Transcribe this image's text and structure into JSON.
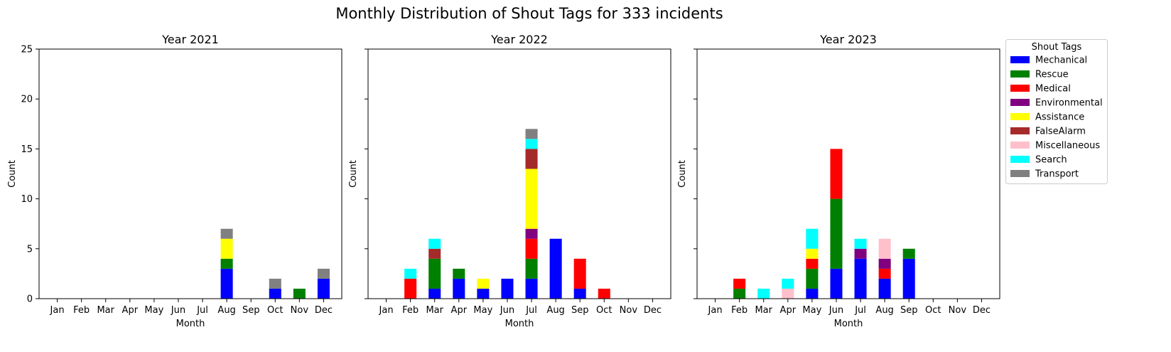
{
  "chart_data": {
    "type": "bar",
    "stacked": true,
    "title": "Monthly Distribution of Shout Tags for 333 incidents",
    "xlabel": "Month",
    "ylabel": "Count",
    "ylim": [
      0,
      25
    ],
    "yticks": [
      0,
      5,
      10,
      15,
      20,
      25
    ],
    "grid": false,
    "shared_y": true,
    "categories": [
      "Jan",
      "Feb",
      "Mar",
      "Apr",
      "May",
      "Jun",
      "Jul",
      "Aug",
      "Sep",
      "Oct",
      "Nov",
      "Dec"
    ],
    "legend": {
      "title": "Shout Tags",
      "placement": "outside-right-top",
      "entries": [
        {
          "name": "Mechanical",
          "color": "#0000ff"
        },
        {
          "name": "Rescue",
          "color": "#008000"
        },
        {
          "name": "Medical",
          "color": "#ff0000"
        },
        {
          "name": "Environmental",
          "color": "#800080"
        },
        {
          "name": "Assistance",
          "color": "#ffff00"
        },
        {
          "name": "FalseAlarm",
          "color": "#a52a2a"
        },
        {
          "name": "Miscellaneous",
          "color": "#ffc0cb"
        },
        {
          "name": "Search",
          "color": "#00ffff"
        },
        {
          "name": "Transport",
          "color": "#808080"
        }
      ]
    },
    "panels": [
      {
        "title": "Year 2021",
        "series": [
          {
            "name": "Mechanical",
            "values": [
              0,
              0,
              0,
              0,
              0,
              0,
              0,
              3,
              0,
              1,
              0,
              2
            ]
          },
          {
            "name": "Rescue",
            "values": [
              0,
              0,
              0,
              0,
              0,
              0,
              0,
              1,
              0,
              0,
              1,
              0
            ]
          },
          {
            "name": "Medical",
            "values": [
              0,
              0,
              0,
              0,
              0,
              0,
              0,
              0,
              0,
              0,
              0,
              0
            ]
          },
          {
            "name": "Environmental",
            "values": [
              0,
              0,
              0,
              0,
              0,
              0,
              0,
              0,
              0,
              0,
              0,
              0
            ]
          },
          {
            "name": "Assistance",
            "values": [
              0,
              0,
              0,
              0,
              0,
              0,
              0,
              2,
              0,
              0,
              0,
              0
            ]
          },
          {
            "name": "FalseAlarm",
            "values": [
              0,
              0,
              0,
              0,
              0,
              0,
              0,
              0,
              0,
              0,
              0,
              0
            ]
          },
          {
            "name": "Miscellaneous",
            "values": [
              0,
              0,
              0,
              0,
              0,
              0,
              0,
              0,
              0,
              0,
              0,
              0
            ]
          },
          {
            "name": "Search",
            "values": [
              0,
              0,
              0,
              0,
              0,
              0,
              0,
              0,
              0,
              0,
              0,
              0
            ]
          },
          {
            "name": "Transport",
            "values": [
              0,
              0,
              0,
              0,
              0,
              0,
              0,
              1,
              0,
              1,
              0,
              1
            ]
          }
        ]
      },
      {
        "title": "Year 2022",
        "series": [
          {
            "name": "Mechanical",
            "values": [
              0,
              0,
              1,
              2,
              1,
              2,
              2,
              6,
              1,
              0,
              0,
              0
            ]
          },
          {
            "name": "Rescue",
            "values": [
              0,
              0,
              3,
              1,
              0,
              0,
              2,
              0,
              0,
              0,
              0,
              0
            ]
          },
          {
            "name": "Medical",
            "values": [
              0,
              2,
              0,
              0,
              0,
              0,
              2,
              0,
              3,
              1,
              0,
              0
            ]
          },
          {
            "name": "Environmental",
            "values": [
              0,
              0,
              0,
              0,
              0,
              0,
              1,
              0,
              0,
              0,
              0,
              0
            ]
          },
          {
            "name": "Assistance",
            "values": [
              0,
              0,
              0,
              0,
              1,
              0,
              6,
              0,
              0,
              0,
              0,
              0
            ]
          },
          {
            "name": "FalseAlarm",
            "values": [
              0,
              0,
              1,
              0,
              0,
              0,
              2,
              0,
              0,
              0,
              0,
              0
            ]
          },
          {
            "name": "Miscellaneous",
            "values": [
              0,
              0,
              0,
              0,
              0,
              0,
              0,
              0,
              0,
              0,
              0,
              0
            ]
          },
          {
            "name": "Search",
            "values": [
              0,
              1,
              1,
              0,
              0,
              0,
              1,
              0,
              0,
              0,
              0,
              0
            ]
          },
          {
            "name": "Transport",
            "values": [
              0,
              0,
              0,
              0,
              0,
              0,
              1,
              0,
              0,
              0,
              0,
              0
            ]
          }
        ]
      },
      {
        "title": "Year 2023",
        "series": [
          {
            "name": "Mechanical",
            "values": [
              0,
              0,
              0,
              0,
              1,
              3,
              4,
              2,
              4,
              0,
              0,
              0
            ]
          },
          {
            "name": "Rescue",
            "values": [
              0,
              1,
              0,
              0,
              2,
              7,
              0,
              0,
              1,
              0,
              0,
              0
            ]
          },
          {
            "name": "Medical",
            "values": [
              0,
              1,
              0,
              0,
              1,
              5,
              0,
              1,
              0,
              0,
              0,
              0
            ]
          },
          {
            "name": "Environmental",
            "values": [
              0,
              0,
              0,
              0,
              0,
              0,
              1,
              1,
              0,
              0,
              0,
              0
            ]
          },
          {
            "name": "Assistance",
            "values": [
              0,
              0,
              0,
              0,
              1,
              0,
              0,
              0,
              0,
              0,
              0,
              0
            ]
          },
          {
            "name": "FalseAlarm",
            "values": [
              0,
              0,
              0,
              0,
              0,
              0,
              0,
              0,
              0,
              0,
              0,
              0
            ]
          },
          {
            "name": "Miscellaneous",
            "values": [
              0,
              0,
              0,
              1,
              0,
              0,
              0,
              2,
              0,
              0,
              0,
              0
            ]
          },
          {
            "name": "Search",
            "values": [
              0,
              0,
              1,
              1,
              2,
              0,
              1,
              0,
              0,
              0,
              0,
              0
            ]
          },
          {
            "name": "Transport",
            "values": [
              0,
              0,
              0,
              0,
              0,
              0,
              0,
              0,
              0,
              0,
              0,
              0
            ]
          }
        ]
      }
    ]
  }
}
